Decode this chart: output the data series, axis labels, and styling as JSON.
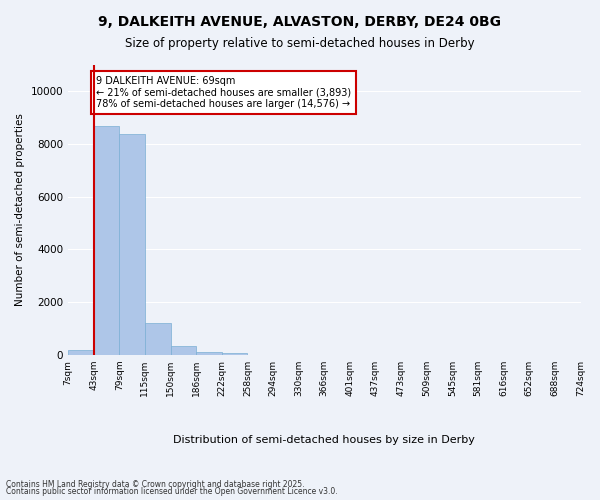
{
  "title_line1": "9, DALKEITH AVENUE, ALVASTON, DERBY, DE24 0BG",
  "title_line2": "Size of property relative to semi-detached houses in Derby",
  "xlabel": "Distribution of semi-detached houses by size in Derby",
  "ylabel": "Number of semi-detached properties",
  "tick_labels": [
    "7sqm",
    "43sqm",
    "79sqm",
    "115sqm",
    "150sqm",
    "186sqm",
    "222sqm",
    "258sqm",
    "294sqm",
    "330sqm",
    "366sqm",
    "401sqm",
    "437sqm",
    "473sqm",
    "509sqm",
    "545sqm",
    "581sqm",
    "616sqm",
    "652sqm",
    "688sqm",
    "724sqm"
  ],
  "bar_heights": [
    200,
    8700,
    8400,
    1200,
    350,
    100,
    70,
    10,
    0,
    0,
    0,
    0,
    0,
    0,
    0,
    0,
    0,
    0,
    0,
    0
  ],
  "bar_color": "#aec6e8",
  "bar_edge_color": "#7bafd4",
  "vline_x": 0.5,
  "annotation_title": "9 DALKEITH AVENUE: 69sqm",
  "annotation_line2": "← 21% of semi-detached houses are smaller (3,893)",
  "annotation_line3": "78% of semi-detached houses are larger (14,576) →",
  "annotation_box_color": "#ffffff",
  "annotation_box_edge": "#cc0000",
  "vline_color": "#cc0000",
  "background_color": "#eef2f9",
  "grid_color": "#ffffff",
  "footer_line1": "Contains HM Land Registry data © Crown copyright and database right 2025.",
  "footer_line2": "Contains public sector information licensed under the Open Government Licence v3.0."
}
